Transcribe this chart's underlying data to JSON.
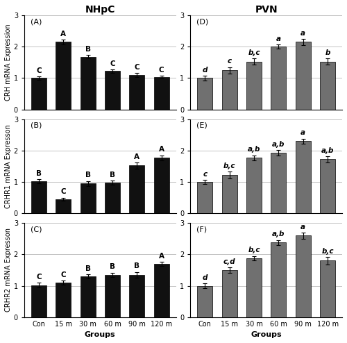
{
  "nhpc_title": "NHpC",
  "pvn_title": "PVN",
  "groups": [
    "Con",
    "15 m",
    "30 m",
    "60 m",
    "90 m",
    "120 m"
  ],
  "xlabel": "Groups",
  "panels_left": [
    {
      "label": "(A)",
      "ylabel": "CRH mRNA Expression",
      "values": [
        1.0,
        2.15,
        1.68,
        1.22,
        1.1,
        1.03
      ],
      "errors": [
        0.05,
        0.07,
        0.06,
        0.06,
        0.06,
        0.05
      ],
      "sig_labels": [
        "C",
        "A",
        "B",
        "C",
        "C",
        "C"
      ],
      "sig_style": "bold_normal"
    },
    {
      "label": "(B)",
      "ylabel": "CRHR1 mRNA Expresson",
      "values": [
        1.02,
        0.45,
        0.95,
        0.97,
        1.52,
        1.77
      ],
      "errors": [
        0.07,
        0.05,
        0.08,
        0.07,
        0.09,
        0.08
      ],
      "sig_labels": [
        "B",
        "C",
        "B",
        "B",
        "A",
        "A"
      ],
      "sig_style": "bold_normal"
    },
    {
      "label": "(C)",
      "ylabel": "CRHR2 mRNA Expresson",
      "values": [
        1.02,
        1.1,
        1.3,
        1.35,
        1.35,
        1.7
      ],
      "errors": [
        0.07,
        0.06,
        0.06,
        0.07,
        0.09,
        0.07
      ],
      "sig_labels": [
        "C",
        "C",
        "B",
        "B",
        "B",
        "A"
      ],
      "sig_style": "bold_normal"
    }
  ],
  "panels_right": [
    {
      "label": "(D)",
      "ylabel": "",
      "values": [
        1.0,
        1.25,
        1.52,
        2.0,
        2.15,
        1.52
      ],
      "errors": [
        0.07,
        0.1,
        0.1,
        0.07,
        0.1,
        0.1
      ],
      "sig_labels": [
        "d",
        "c",
        "b,c",
        "a",
        "a",
        "b"
      ],
      "sig_style": "bold_italic"
    },
    {
      "label": "(E)",
      "ylabel": "",
      "values": [
        1.0,
        1.22,
        1.77,
        1.92,
        2.3,
        1.72
      ],
      "errors": [
        0.06,
        0.1,
        0.08,
        0.09,
        0.08,
        0.1
      ],
      "sig_labels": [
        "c",
        "b,c",
        "a,b",
        "a,b",
        "a",
        "a,b"
      ],
      "sig_style": "bold_italic"
    },
    {
      "label": "(F)",
      "ylabel": "",
      "values": [
        1.0,
        1.5,
        1.88,
        2.38,
        2.6,
        1.8
      ],
      "errors": [
        0.08,
        0.08,
        0.07,
        0.08,
        0.1,
        0.12
      ],
      "sig_labels": [
        "d",
        "c,d",
        "b,c",
        "a,b",
        "a",
        "b,c"
      ],
      "sig_style": "bold_italic"
    }
  ],
  "bar_color_left": "#111111",
  "bar_color_right": "#707070",
  "ylim": [
    0,
    3
  ],
  "yticks": [
    0,
    1,
    2,
    3
  ],
  "bar_width": 0.62,
  "background_color": "#ffffff",
  "panel_label_fontsize": 8,
  "sig_label_fontsize": 7.5,
  "ylabel_fontsize": 7,
  "tick_fontsize": 7,
  "xlabel_fontsize": 8,
  "title_fontsize": 10
}
